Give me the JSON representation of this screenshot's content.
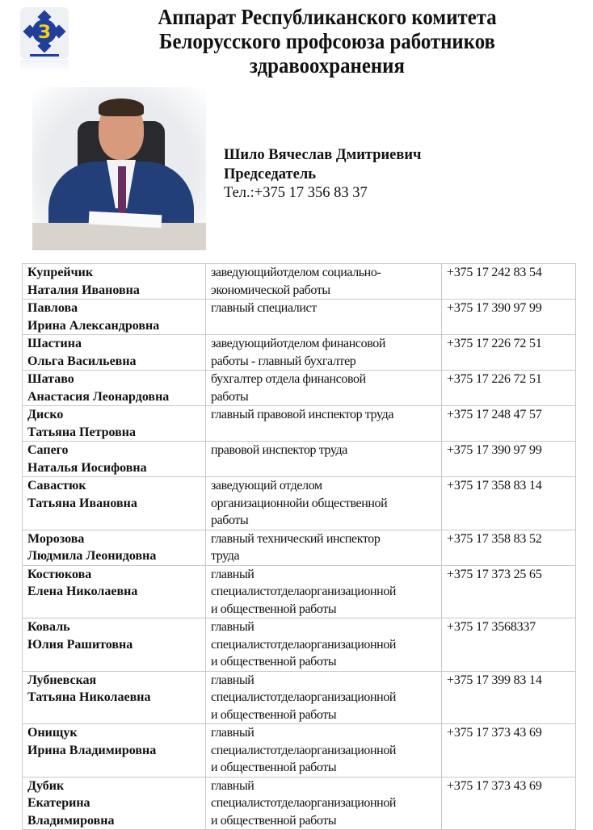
{
  "header": {
    "title_lines": [
      "Аппарат Республиканского комитета",
      "Белорусского профсоюза работников",
      "здравоохранения"
    ]
  },
  "chairman": {
    "name": "Шило Вячеслав Дмитриевич",
    "position": "Председатель",
    "phone": "Тел.:+375 17 356 83 37"
  },
  "staff": [
    {
      "name": [
        "Купрейчик",
        "Наталия Ивановна"
      ],
      "position": [
        "заведующийотделом социально-",
        "экономической работы"
      ],
      "phone": "+375 17 242 83 54"
    },
    {
      "name": [
        "Павлова",
        "Ирина Александровна"
      ],
      "position": [
        "главный специалист"
      ],
      "phone": "+375 17 390 97 99"
    },
    {
      "name": [
        "Шастина",
        "Ольга Васильевна"
      ],
      "position": [
        "заведующийотделом финансовой",
        "работы - главный бухгалтер"
      ],
      "phone": "+375 17 226 72 51"
    },
    {
      "name": [
        "Шатаво",
        "Анастасия Леонардовна"
      ],
      "position": [
        "бухгалтер отдела финансовой",
        "работы"
      ],
      "phone": "+375 17 226 72 51"
    },
    {
      "name": [
        "Диско",
        "Татьяна Петровна"
      ],
      "position": [
        "главный правовой инспектор труда"
      ],
      "phone": "+375 17 248 47 57"
    },
    {
      "name": [
        "Сапего",
        "Наталья Иосифовна"
      ],
      "position": [
        "правовой инспектор труда"
      ],
      "phone": "+375 17 390 97 99"
    },
    {
      "name": [
        "Савастюк",
        "Татьяна Ивановна"
      ],
      "position": [
        "заведующий отделом",
        "организационнойи общественной",
        "работы"
      ],
      "phone": "+375 17 358 83 14"
    },
    {
      "name": [
        "Морозова",
        "Людмила Леонидовна"
      ],
      "position": [
        "главный технический инспектор",
        "труда"
      ],
      "phone": "+375 17 358 83 52"
    },
    {
      "name": [
        "Костюкова",
        "Елена Николаевна"
      ],
      "position": [
        "главный",
        "специалистотделаорганизационной",
        "и общественной работы"
      ],
      "phone": "+375 17 373 25 65"
    },
    {
      "name": [
        "Коваль",
        "Юлия Рашитовна"
      ],
      "position": [
        "главный",
        "специалистотделаорганизационной",
        "и общественной работы"
      ],
      "phone": "+375 17 3568337"
    },
    {
      "name": [
        "Лубневская",
        "Татьяна Николаевна"
      ],
      "position": [
        "главный",
        "специалистотделаорганизационной",
        "и общественной работы"
      ],
      "phone": "+375 17 399 83 14"
    },
    {
      "name": [
        "Онищук",
        "Ирина Владимировна"
      ],
      "position": [
        "главный",
        "специалистотделаорганизационной",
        "и общественной работы"
      ],
      "phone": "+375 17 373 43 69"
    },
    {
      "name": [
        "Дубик",
        "Екатерина",
        "Владимировна"
      ],
      "position": [
        "главный",
        "специалистотделаорганизационной",
        "и общественной работы"
      ],
      "phone": "+375 17 373 43 69"
    }
  ],
  "colors": {
    "logo_blue": "#1f3f9a",
    "logo_yellow": "#f2d21a",
    "suit": "#223f7a"
  }
}
